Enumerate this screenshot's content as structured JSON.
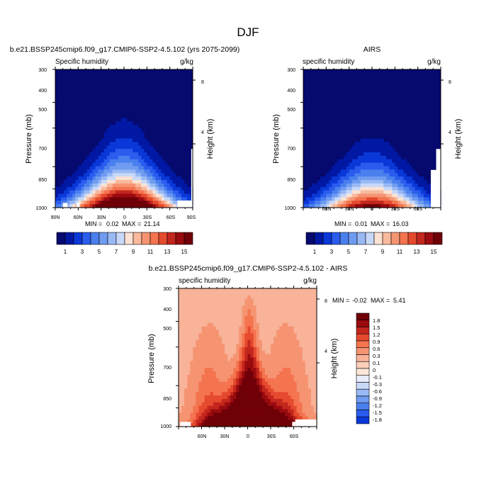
{
  "page_title": "DJF",
  "colors": {
    "model_scale": [
      "#06096e",
      "#0018a3",
      "#0a38d8",
      "#2a5cee",
      "#4a7fee",
      "#6f9bf0",
      "#99b9f4",
      "#c7d8f8",
      "#fbe2d3",
      "#f8b99c",
      "#f69472",
      "#f4744f",
      "#e54a2e",
      "#c3261d",
      "#9a0b0f",
      "#6f0008"
    ],
    "diff_scale": [
      "#06096e",
      "#0018a3",
      "#0a38d8",
      "#2a5cee",
      "#4a7fee",
      "#6f9bf0",
      "#99b9f4",
      "#c7d8f8",
      "#e8eefb",
      "#fde6d8",
      "#fbcfb8",
      "#f8b399",
      "#f69472",
      "#f4744f",
      "#e54a2e",
      "#c3261d",
      "#9a0b0f",
      "#6f0008"
    ],
    "white_gap": "#ffffff"
  },
  "chart_data": [
    {
      "id": "model",
      "type": "heatmap",
      "case_title": "b.e21.BSSP245cmip6.f09_g17.CMIP6-SSP2-4.5.102 (yrs 2075-2099)",
      "left_label": "Specific humidity",
      "units_label": "g/kg",
      "ylabel": "Pressure (mb)",
      "right_label": "Height (km)",
      "pressure_ticks": [
        "300",
        "400",
        "500",
        "700",
        "850",
        "1000"
      ],
      "height_ticks": [
        "8",
        "4"
      ],
      "lat_ticks": [
        "90N",
        "60N",
        "30N",
        "0",
        "30S",
        "60S",
        "90S"
      ],
      "lat_range": [
        90,
        -90
      ],
      "pressure_range": [
        300,
        1000
      ],
      "min_label": "MIN =",
      "min_value": "0.02",
      "max_label": "MAX =",
      "max_value": "21.14",
      "peak": 21.14,
      "top_level_p": 330,
      "colorbar_labels": [
        "1",
        "3",
        "5",
        "7",
        "9",
        "11",
        "13",
        "15"
      ],
      "levels": [
        1,
        2,
        3,
        4,
        5,
        6,
        7,
        8,
        9,
        10,
        11,
        12,
        13,
        14,
        15
      ]
    },
    {
      "id": "obs",
      "type": "heatmap",
      "case_title": "AIRS",
      "left_label": "specific humidity",
      "units_label": "g/kg",
      "ylabel": "Pressure (mb)",
      "right_label": "Height (km)",
      "pressure_ticks": [
        "300",
        "400",
        "500",
        "700",
        "850",
        "1000"
      ],
      "height_ticks": [
        "8",
        "4"
      ],
      "lat_ticks": [
        "60N",
        "30N",
        "0",
        "30S",
        "60S"
      ],
      "lat_range": [
        90,
        -90
      ],
      "pressure_range": [
        300,
        1000
      ],
      "min_label": "MIN =",
      "min_value": "0.01",
      "max_label": "MAX =",
      "max_value": "16.03",
      "peak": 16.03,
      "top_level_p": 430,
      "colorbar_labels": [
        "1",
        "3",
        "5",
        "7",
        "9",
        "11",
        "13",
        "15"
      ],
      "levels": [
        1,
        2,
        3,
        4,
        5,
        6,
        7,
        8,
        9,
        10,
        11,
        12,
        13,
        14,
        15
      ]
    },
    {
      "id": "diff",
      "type": "heatmap",
      "case_title": "b.e21.BSSP245cmip6.f09_g17.CMIP6-SSP2-4.5.102 - AIRS",
      "left_label": "specific humidity",
      "units_label": "g/kg",
      "ylabel": "Pressure (mb)",
      "right_label": "Height (km)",
      "pressure_ticks": [
        "300",
        "400",
        "500",
        "700",
        "850",
        "1000"
      ],
      "height_ticks": [
        "8",
        "4"
      ],
      "lat_ticks": [
        "60N",
        "30N",
        "0",
        "30S",
        "60S"
      ],
      "lat_range": [
        90,
        -90
      ],
      "pressure_range": [
        300,
        1000
      ],
      "min_label": "MIN =",
      "min_value": "-0.02",
      "max_label": "MAX =",
      "max_value": "5.41",
      "colorbar_labels": [
        "1.8",
        "1.5",
        "1.2",
        "0.9",
        "0.6",
        "0.3",
        "0.1",
        "0",
        "-0.1",
        "-0.3",
        "-0.6",
        "-0.9",
        "-1.2",
        "-1.5",
        "-1.8"
      ],
      "levels": [
        -1.8,
        -1.5,
        -1.2,
        -0.9,
        -0.6,
        -0.3,
        -0.1,
        0,
        0.1,
        0.3,
        0.6,
        0.9,
        1.2,
        1.5,
        1.8
      ]
    }
  ]
}
